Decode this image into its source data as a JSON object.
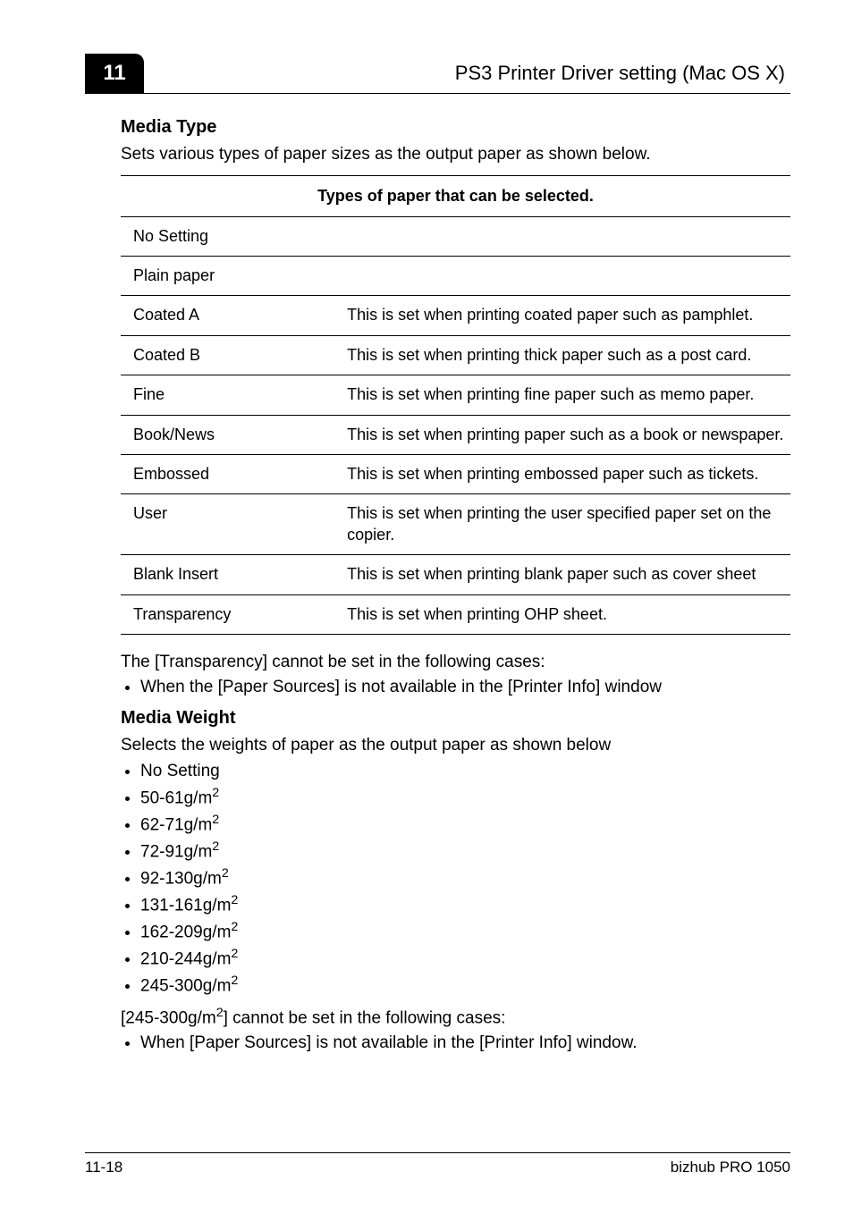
{
  "header": {
    "chapter_number": "11",
    "title": "PS3 Printer Driver setting (Mac OS X)"
  },
  "media_type": {
    "heading": "Media Type",
    "intro": "Sets various types of paper sizes as the output paper as shown below.",
    "table_caption": "Types of paper that can be selected.",
    "rows": [
      {
        "name": "No Setting",
        "desc": ""
      },
      {
        "name": "Plain paper",
        "desc": ""
      },
      {
        "name": "Coated A",
        "desc": "This is set when printing coated paper such as pamphlet."
      },
      {
        "name": "Coated B",
        "desc": "This is set when printing thick paper such as a post card."
      },
      {
        "name": "Fine",
        "desc": "This is set when printing fine paper such as memo paper."
      },
      {
        "name": "Book/News",
        "desc": "This is set when printing paper such as a book or newspaper."
      },
      {
        "name": "Embossed",
        "desc": "This is set when printing embossed paper such as tickets."
      },
      {
        "name": "User",
        "desc": "This is set when printing the user specified paper set on the copier."
      },
      {
        "name": "Blank Insert",
        "desc": "This is set when printing blank paper such as cover sheet"
      },
      {
        "name": "Transparency",
        "desc": "This is set when printing OHP sheet."
      }
    ],
    "transparency_note": "The [Transparency] cannot be set in the following cases:",
    "transparency_case": "When the [Paper Sources] is not available in the [Printer Info] window"
  },
  "media_weight": {
    "heading": "Media Weight",
    "intro": "Selects the weights of paper as the output paper as shown below",
    "weights": [
      "No Setting",
      "50-61g/m",
      "62-71g/m",
      "72-91g/m",
      "92-130g/m",
      "131-161g/m",
      "162-209g/m",
      "210-244g/m",
      "245-300g/m"
    ],
    "note_prefix": "[245-300g/m",
    "note_suffix": "] cannot be set in the following cases:",
    "note_case": "When [Paper Sources] is not available in the [Printer Info] window."
  },
  "footer": {
    "page_label": "11-18",
    "product": "bizhub PRO 1050"
  }
}
